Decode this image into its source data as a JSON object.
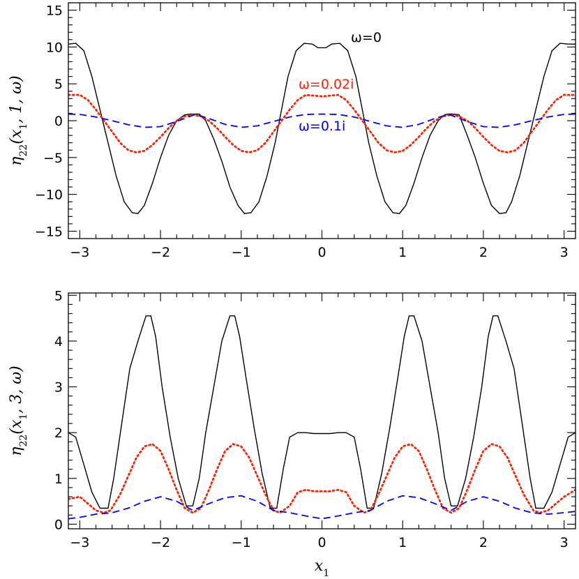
{
  "chart_data": [
    {
      "type": "line",
      "ylabel": "η22(x1, 1, ω)",
      "xlabel": "",
      "xlim": [
        -3.14159,
        3.14159
      ],
      "ylim": [
        -16,
        16
      ],
      "xticks": [
        -3,
        -2,
        -1,
        0,
        1,
        2,
        3
      ],
      "yticks": [
        -15,
        -10,
        -5,
        0,
        5,
        10,
        15
      ],
      "xtick_labels": [
        "−3",
        "−2",
        "−1",
        "0",
        "1",
        "2",
        "3"
      ],
      "ytick_labels": [
        "−15",
        "−10",
        "−5",
        "0",
        "5",
        "10",
        "15"
      ],
      "grid": false,
      "annotations": [
        {
          "text": "ω=0",
          "series": "omega0",
          "color": "#000000"
        },
        {
          "text": "ω=0.02i",
          "series": "omega002i",
          "color": "#ff2200"
        },
        {
          "text": "ω=0.1i",
          "series": "omega01i",
          "color": "#0000ff"
        }
      ],
      "series": [
        {
          "key": "omega0",
          "color": "#000000",
          "style": "solid",
          "x": [
            -3.14,
            -3.05,
            -2.95,
            -2.85,
            -2.75,
            -2.65,
            -2.55,
            -2.45,
            -2.35,
            -2.28,
            -2.2,
            -2.1,
            -2.0,
            -1.9,
            -1.8,
            -1.7,
            -1.62,
            -1.57,
            -1.52,
            -1.44,
            -1.34,
            -1.24,
            -1.14,
            -1.04,
            -0.96,
            -0.88,
            -0.78,
            -0.68,
            -0.58,
            -0.5,
            -0.42,
            -0.32,
            -0.22,
            -0.12,
            -0.05,
            0.05,
            0.12,
            0.22,
            0.32,
            0.42,
            0.5,
            0.58,
            0.68,
            0.78,
            0.88,
            0.96,
            1.04,
            1.14,
            1.24,
            1.34,
            1.44,
            1.52,
            1.57,
            1.62,
            1.7,
            1.8,
            1.9,
            2.0,
            2.1,
            2.2,
            2.28,
            2.35,
            2.45,
            2.55,
            2.65,
            2.75,
            2.85,
            2.95,
            3.05,
            3.14
          ],
          "y": [
            10.4,
            10.5,
            9.5,
            6.0,
            1.5,
            -3.0,
            -7.5,
            -11.0,
            -12.5,
            -12.6,
            -11.5,
            -8.5,
            -5.0,
            -2.0,
            0.0,
            0.8,
            0.9,
            0.9,
            0.9,
            0.0,
            -2.5,
            -5.5,
            -9.0,
            -11.5,
            -12.6,
            -12.5,
            -11.0,
            -7.5,
            -3.0,
            1.5,
            6.0,
            9.5,
            10.5,
            10.4,
            9.9,
            9.9,
            10.4,
            10.5,
            9.5,
            6.0,
            1.5,
            -3.0,
            -7.5,
            -11.0,
            -12.5,
            -12.6,
            -11.5,
            -8.5,
            -5.0,
            -2.0,
            0.0,
            0.8,
            0.9,
            0.9,
            0.8,
            -2.0,
            -5.0,
            -8.5,
            -11.5,
            -12.6,
            -12.5,
            -11.0,
            -7.5,
            -3.0,
            1.5,
            6.0,
            9.5,
            10.5,
            10.4,
            10.4
          ]
        },
        {
          "key": "omega002i",
          "color": "#ff2200",
          "style": "dotted",
          "x": [
            -3.14,
            -3.0,
            -2.9,
            -2.8,
            -2.7,
            -2.6,
            -2.5,
            -2.4,
            -2.3,
            -2.2,
            -2.1,
            -2.0,
            -1.9,
            -1.8,
            -1.7,
            -1.6,
            -1.5,
            -1.4,
            -1.3,
            -1.2,
            -1.1,
            -1.0,
            -0.9,
            -0.8,
            -0.7,
            -0.6,
            -0.5,
            -0.4,
            -0.3,
            -0.2,
            -0.1,
            0.0,
            0.1,
            0.2,
            0.3,
            0.4,
            0.5,
            0.6,
            0.7,
            0.8,
            0.9,
            1.0,
            1.1,
            1.2,
            1.3,
            1.4,
            1.5,
            1.6,
            1.7,
            1.8,
            1.9,
            2.0,
            2.1,
            2.2,
            2.3,
            2.4,
            2.5,
            2.6,
            2.7,
            2.8,
            2.9,
            3.0,
            3.14
          ],
          "y": [
            3.5,
            3.5,
            2.8,
            1.5,
            0.0,
            -1.5,
            -3.0,
            -4.0,
            -4.3,
            -4.1,
            -3.3,
            -2.2,
            -1.0,
            0.0,
            0.6,
            0.8,
            0.6,
            0.0,
            -1.0,
            -2.2,
            -3.3,
            -4.1,
            -4.3,
            -4.0,
            -3.0,
            -1.5,
            0.0,
            1.5,
            2.8,
            3.5,
            3.4,
            3.3,
            3.4,
            3.5,
            2.8,
            1.5,
            0.0,
            -1.5,
            -3.0,
            -4.0,
            -4.3,
            -4.1,
            -3.3,
            -2.2,
            -1.0,
            0.0,
            0.6,
            0.8,
            0.6,
            0.0,
            -1.0,
            -2.2,
            -3.3,
            -4.1,
            -4.3,
            -4.0,
            -3.0,
            -1.5,
            0.0,
            1.5,
            2.8,
            3.5,
            3.5
          ]
        },
        {
          "key": "omega01i",
          "color": "#0000ff",
          "style": "dashed",
          "x": [
            -3.14,
            -3.0,
            -2.8,
            -2.6,
            -2.4,
            -2.2,
            -2.0,
            -1.8,
            -1.57,
            -1.4,
            -1.2,
            -1.0,
            -0.8,
            -0.6,
            -0.4,
            -0.2,
            0.0,
            0.2,
            0.4,
            0.6,
            0.8,
            1.0,
            1.2,
            1.4,
            1.57,
            1.8,
            2.0,
            2.2,
            2.4,
            2.6,
            2.8,
            3.0,
            3.14
          ],
          "y": [
            0.9,
            0.85,
            0.5,
            0.0,
            -0.55,
            -0.9,
            -0.8,
            -0.1,
            0.85,
            0.3,
            -0.5,
            -0.9,
            -0.7,
            -0.1,
            0.5,
            0.85,
            0.9,
            0.85,
            0.5,
            -0.1,
            -0.7,
            -0.9,
            -0.5,
            0.3,
            0.85,
            -0.1,
            -0.8,
            -0.9,
            -0.55,
            0.0,
            0.5,
            0.85,
            0.9
          ]
        }
      ]
    },
    {
      "type": "line",
      "ylabel": "η22(x1, 3, ω)",
      "xlabel": "x1",
      "xlim": [
        -3.14159,
        3.14159
      ],
      "ylim": [
        -0.1,
        5.05
      ],
      "xticks": [
        -3,
        -2,
        -1,
        0,
        1,
        2,
        3
      ],
      "yticks": [
        0,
        1,
        2,
        3,
        4,
        5
      ],
      "xtick_labels": [
        "−3",
        "−2",
        "−1",
        "0",
        "1",
        "2",
        "3"
      ],
      "ytick_labels": [
        "0",
        "1",
        "2",
        "3",
        "4",
        "5"
      ],
      "grid": false,
      "series": [
        {
          "key": "omega0",
          "color": "#000000",
          "style": "solid",
          "x": [
            -3.14,
            -3.05,
            -2.95,
            -2.85,
            -2.75,
            -2.65,
            -2.58,
            -2.48,
            -2.38,
            -2.28,
            -2.18,
            -2.12,
            -2.06,
            -1.98,
            -1.88,
            -1.78,
            -1.68,
            -1.6,
            -1.52,
            -1.44,
            -1.34,
            -1.24,
            -1.14,
            -1.08,
            -1.02,
            -0.94,
            -0.84,
            -0.74,
            -0.64,
            -0.56,
            -0.48,
            -0.4,
            -0.3,
            -0.2,
            -0.1,
            0.0,
            0.1,
            0.2,
            0.3,
            0.4,
            0.48,
            0.56,
            0.64,
            0.74,
            0.84,
            0.94,
            1.02,
            1.08,
            1.14,
            1.24,
            1.34,
            1.44,
            1.52,
            1.6,
            1.68,
            1.78,
            1.88,
            1.98,
            2.06,
            2.12,
            2.18,
            2.28,
            2.38,
            2.48,
            2.58,
            2.65,
            2.75,
            2.85,
            2.95,
            3.05,
            3.14
          ],
          "y": [
            2.0,
            1.9,
            1.3,
            0.7,
            0.35,
            0.35,
            1.0,
            2.2,
            3.4,
            4.0,
            4.55,
            4.55,
            4.1,
            3.0,
            1.9,
            1.0,
            0.4,
            0.4,
            1.0,
            2.0,
            3.0,
            4.0,
            4.55,
            4.55,
            4.1,
            3.2,
            2.1,
            1.1,
            0.35,
            0.35,
            1.2,
            1.9,
            2.0,
            2.0,
            1.98,
            1.98,
            1.98,
            2.0,
            2.0,
            1.9,
            1.2,
            0.35,
            0.35,
            1.1,
            2.1,
            3.2,
            4.1,
            4.55,
            4.55,
            4.0,
            3.0,
            2.0,
            1.0,
            0.4,
            0.4,
            1.0,
            1.9,
            3.0,
            4.1,
            4.55,
            4.55,
            4.0,
            3.4,
            2.2,
            1.0,
            0.35,
            0.35,
            0.7,
            1.3,
            1.9,
            2.0
          ]
        },
        {
          "key": "omega002i",
          "color": "#ff2200",
          "style": "dotted",
          "x": [
            -3.14,
            -3.0,
            -2.9,
            -2.8,
            -2.7,
            -2.62,
            -2.5,
            -2.4,
            -2.3,
            -2.2,
            -2.1,
            -2.0,
            -1.9,
            -1.8,
            -1.7,
            -1.6,
            -1.5,
            -1.4,
            -1.3,
            -1.2,
            -1.1,
            -1.0,
            -0.9,
            -0.8,
            -0.7,
            -0.6,
            -0.52,
            -0.4,
            -0.3,
            -0.2,
            -0.1,
            0.0,
            0.1,
            0.2,
            0.3,
            0.4,
            0.52,
            0.6,
            0.7,
            0.8,
            0.9,
            1.0,
            1.1,
            1.2,
            1.3,
            1.4,
            1.5,
            1.6,
            1.7,
            1.8,
            1.9,
            2.0,
            2.1,
            2.2,
            2.3,
            2.4,
            2.5,
            2.62,
            2.7,
            2.8,
            2.9,
            3.0,
            3.14
          ],
          "y": [
            0.55,
            0.6,
            0.45,
            0.3,
            0.25,
            0.3,
            0.65,
            1.05,
            1.45,
            1.7,
            1.75,
            1.6,
            1.2,
            0.75,
            0.35,
            0.25,
            0.35,
            0.75,
            1.2,
            1.6,
            1.75,
            1.7,
            1.45,
            1.05,
            0.65,
            0.3,
            0.25,
            0.4,
            0.7,
            0.75,
            0.72,
            0.72,
            0.72,
            0.75,
            0.7,
            0.4,
            0.25,
            0.3,
            0.65,
            1.05,
            1.45,
            1.7,
            1.75,
            1.6,
            1.2,
            0.75,
            0.35,
            0.25,
            0.35,
            0.75,
            1.2,
            1.6,
            1.75,
            1.7,
            1.45,
            1.05,
            0.65,
            0.3,
            0.25,
            0.3,
            0.45,
            0.6,
            0.75
          ]
        },
        {
          "key": "omega01i",
          "color": "#0000ff",
          "style": "dashed",
          "x": [
            -3.14,
            -3.0,
            -2.8,
            -2.6,
            -2.4,
            -2.2,
            -2.0,
            -1.8,
            -1.6,
            -1.4,
            -1.2,
            -1.0,
            -0.8,
            -0.6,
            -0.4,
            -0.2,
            0.0,
            0.2,
            0.4,
            0.6,
            0.8,
            1.0,
            1.2,
            1.4,
            1.6,
            1.8,
            2.0,
            2.2,
            2.4,
            2.6,
            2.8,
            3.0,
            3.14
          ],
          "y": [
            0.12,
            0.15,
            0.22,
            0.25,
            0.35,
            0.5,
            0.6,
            0.5,
            0.3,
            0.45,
            0.58,
            0.62,
            0.5,
            0.3,
            0.25,
            0.18,
            0.12,
            0.18,
            0.25,
            0.3,
            0.5,
            0.62,
            0.58,
            0.45,
            0.3,
            0.5,
            0.6,
            0.5,
            0.35,
            0.25,
            0.22,
            0.25,
            0.28
          ]
        }
      ]
    }
  ]
}
